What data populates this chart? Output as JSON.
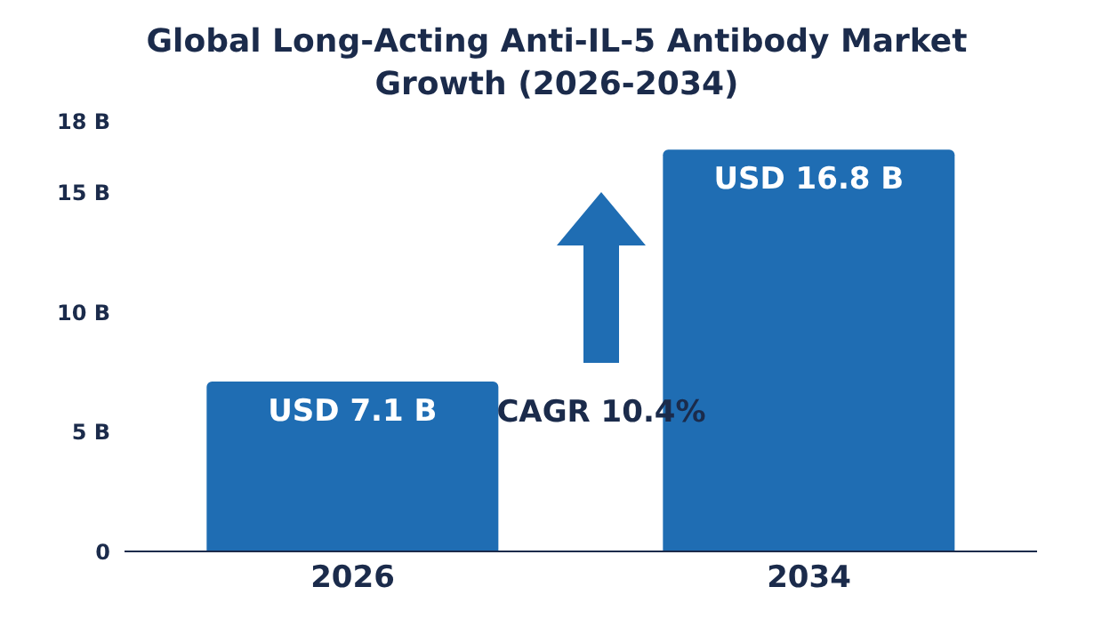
{
  "chart_data": {
    "type": "bar",
    "title": "Global Long-Acting Anti-IL-5 Antibody Market Growth (2026-2034)",
    "categories": [
      "2026",
      "2034"
    ],
    "values": [
      7.1,
      16.8
    ],
    "value_labels": [
      "USD 7.1 B",
      "USD 16.8 B"
    ],
    "color": "#1f6db3",
    "ylim": [
      0,
      18
    ],
    "yticks": [
      {
        "value": 0,
        "label": "0"
      },
      {
        "value": 5,
        "label": "5 B"
      },
      {
        "value": 10,
        "label": "10 B"
      },
      {
        "value": 15,
        "label": "15 B"
      },
      {
        "value": 18,
        "label": "18 B"
      }
    ],
    "annotations": [
      "CAGR 10.4%"
    ]
  }
}
